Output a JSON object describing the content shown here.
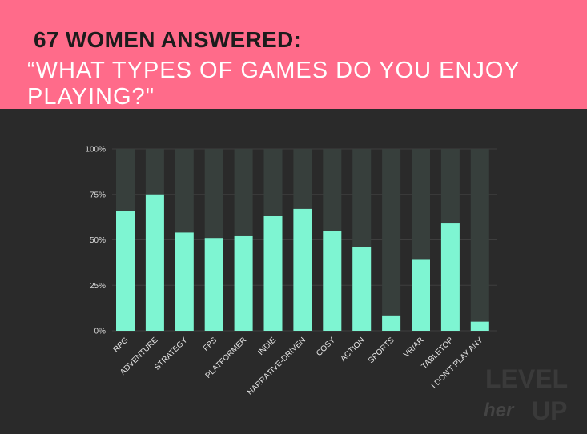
{
  "header": {
    "line1": "67 WOMEN ANSWERED:",
    "line2": "“WHAT TYPES OF GAMES DO YOU ENJOY PLAYING?\""
  },
  "logo": {
    "top": "LEVEL",
    "script": "her",
    "bottom": "UP"
  },
  "colors": {
    "banner": "#ff6b8a",
    "background": "#2a2a2a",
    "bar": "#7ef5d2",
    "track": "#373f3c"
  },
  "chart_data": {
    "type": "bar",
    "categories": [
      "RPG",
      "ADVENTURE",
      "STRATEGY",
      "FPS",
      "PLATFORMER",
      "INDIE",
      "NARRATIVE-DRIVEN",
      "COSY",
      "ACTION",
      "SPORTS",
      "VR/AR",
      "TABLETOP",
      "I DON'T PLAY ANY"
    ],
    "values": [
      66,
      75,
      54,
      51,
      52,
      63,
      67,
      55,
      46,
      8,
      39,
      59,
      5
    ],
    "ylim": [
      0,
      100
    ],
    "yticks": [
      "0%",
      "25%",
      "50%",
      "75%",
      "100%"
    ],
    "ytick_values": [
      0,
      25,
      50,
      75,
      100
    ],
    "grid": true,
    "legend": "none"
  }
}
